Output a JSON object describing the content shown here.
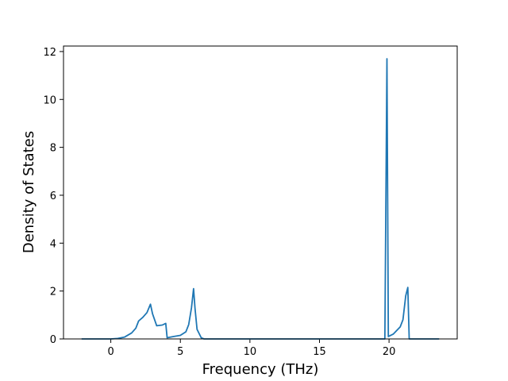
{
  "chart_data": {
    "type": "line",
    "xlabel": "Frequency (THz)",
    "ylabel": "Density of States",
    "x": [
      -2.1,
      0,
      0.5,
      1,
      1.5,
      1.8,
      2.0,
      2.3,
      2.6,
      2.85,
      3.0,
      3.3,
      3.7,
      3.95,
      4.05,
      4.5,
      5,
      5.4,
      5.6,
      5.8,
      5.95,
      6.05,
      6.2,
      6.5,
      6.7,
      19.7,
      19.85,
      19.95,
      20.3,
      20.8,
      21.0,
      21.2,
      21.35,
      21.45,
      23.6
    ],
    "values": [
      0,
      0,
      0.02,
      0.08,
      0.25,
      0.45,
      0.75,
      0.9,
      1.1,
      1.45,
      1.05,
      0.55,
      0.58,
      0.65,
      0.05,
      0.1,
      0.15,
      0.3,
      0.6,
      1.3,
      2.1,
      1.3,
      0.4,
      0.05,
      0,
      0,
      11.7,
      0.1,
      0.2,
      0.5,
      0.8,
      1.8,
      2.15,
      0,
      0
    ],
    "color": "#1f77b4",
    "xlim": [
      -3.4,
      24.9
    ],
    "xticks": [
      0,
      5,
      10,
      15,
      20
    ],
    "ylim": [
      0,
      12.23
    ],
    "yticks": [
      0,
      2,
      4,
      6,
      8,
      10,
      12
    ]
  }
}
